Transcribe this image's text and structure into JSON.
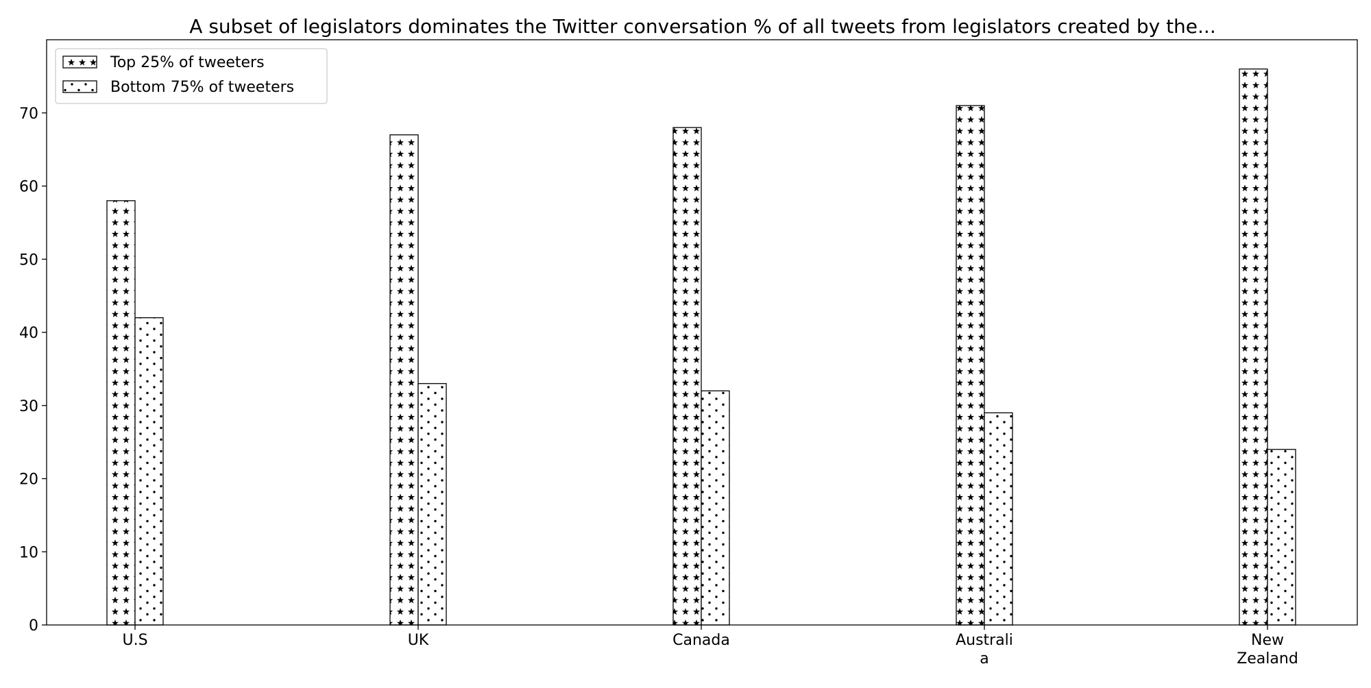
{
  "chart_data": {
    "type": "bar",
    "title": "A subset of legislators dominates the Twitter conversation % of all tweets from legislators created by the...",
    "xlabel": "",
    "ylabel": "",
    "categories": [
      [
        "U.S"
      ],
      [
        "UK"
      ],
      [
        "Canada"
      ],
      [
        "Australi",
        "a"
      ],
      [
        "New",
        "Zealand"
      ]
    ],
    "series": [
      {
        "name": "Top 25% of tweeters",
        "values": [
          58,
          67,
          68,
          71,
          76
        ],
        "pattern": "stars"
      },
      {
        "name": "Bottom 75% of tweeters",
        "values": [
          42,
          33,
          32,
          29,
          24
        ],
        "pattern": "dots"
      }
    ],
    "ylim": [
      0,
      80
    ],
    "yticks": [
      0,
      10,
      20,
      30,
      40,
      50,
      60,
      70
    ],
    "grid": false,
    "legend": "top-left",
    "colors": {
      "bar_fill": "#ffffff",
      "bar_edge": "#000000",
      "hatch": "#000000"
    }
  }
}
